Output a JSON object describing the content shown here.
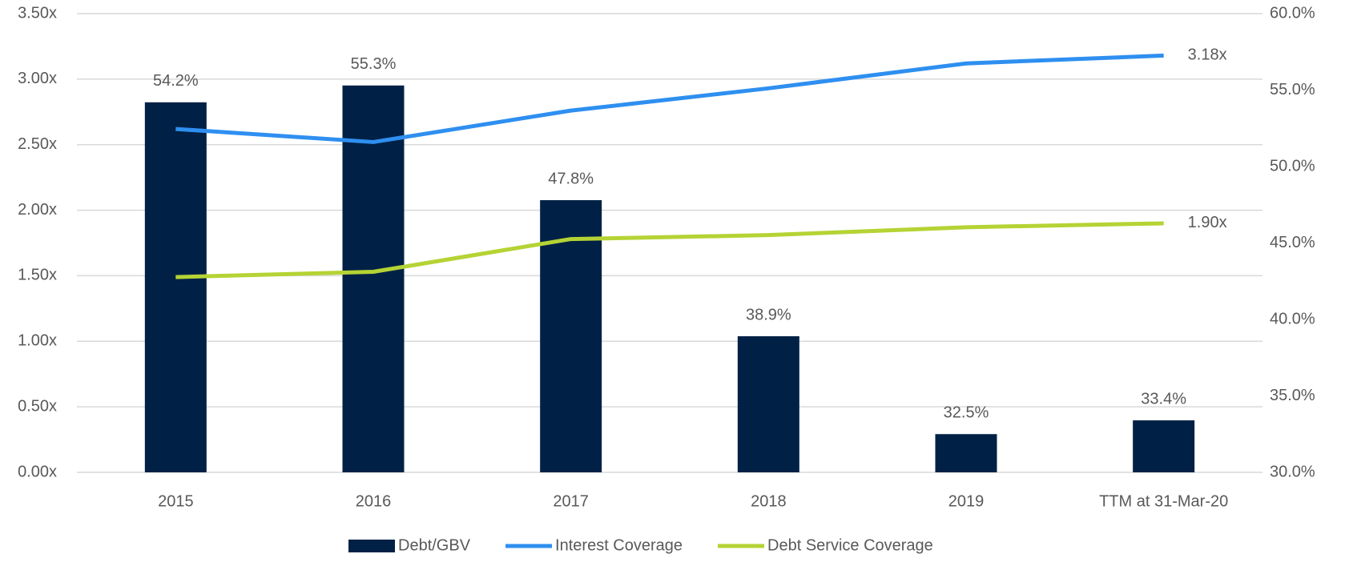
{
  "chart_data": {
    "type": "bar",
    "categories": [
      "2015",
      "2016",
      "2017",
      "2018",
      "2019",
      "TTM at 31-Mar-20"
    ],
    "series": [
      {
        "name": "Debt/GBV",
        "type": "bar",
        "axis": "y2",
        "color": "#002145",
        "values": [
          54.2,
          55.3,
          47.8,
          38.9,
          32.5,
          33.4
        ],
        "value_labels": [
          "54.2%",
          "55.3%",
          "47.8%",
          "38.9%",
          "32.5%",
          "33.4%"
        ]
      },
      {
        "name": "Interest Coverage",
        "type": "line",
        "color": "#2e8ff0",
        "values": [
          2.62,
          2.52,
          2.76,
          2.93,
          3.12,
          3.18
        ],
        "value_labels": [
          null,
          null,
          null,
          null,
          null,
          "3.18x"
        ]
      },
      {
        "name": "Debt Service Coverage",
        "type": "line",
        "color": "#b5d334",
        "values": [
          1.49,
          1.53,
          1.78,
          1.81,
          1.87,
          1.9
        ],
        "value_labels": [
          null,
          null,
          null,
          null,
          null,
          "1.90x"
        ]
      }
    ],
    "ylim": [
      0,
      3.5
    ],
    "yticks": [
      {
        "value": 0,
        "label": "0.00x"
      },
      {
        "value": 0.5,
        "label": "0.50x"
      },
      {
        "value": 1,
        "label": "1.00x"
      },
      {
        "value": 1.5,
        "label": "1.50x"
      },
      {
        "value": 2,
        "label": "2.00x"
      },
      {
        "value": 2.5,
        "label": "2.50x"
      },
      {
        "value": 3,
        "label": "3.00x"
      },
      {
        "value": 3.5,
        "label": "3.50x"
      }
    ],
    "y2lim": [
      30,
      60
    ],
    "y2ticks": [
      {
        "value": 30,
        "label": "30.0%"
      },
      {
        "value": 35,
        "label": "35.0%"
      },
      {
        "value": 40,
        "label": "40.0%"
      },
      {
        "value": 45,
        "label": "45.0%"
      },
      {
        "value": 50,
        "label": "50.0%"
      },
      {
        "value": 55,
        "label": "55.0%"
      },
      {
        "value": 60,
        "label": "60.0%"
      }
    ],
    "grid": true,
    "legend": "bottom"
  }
}
